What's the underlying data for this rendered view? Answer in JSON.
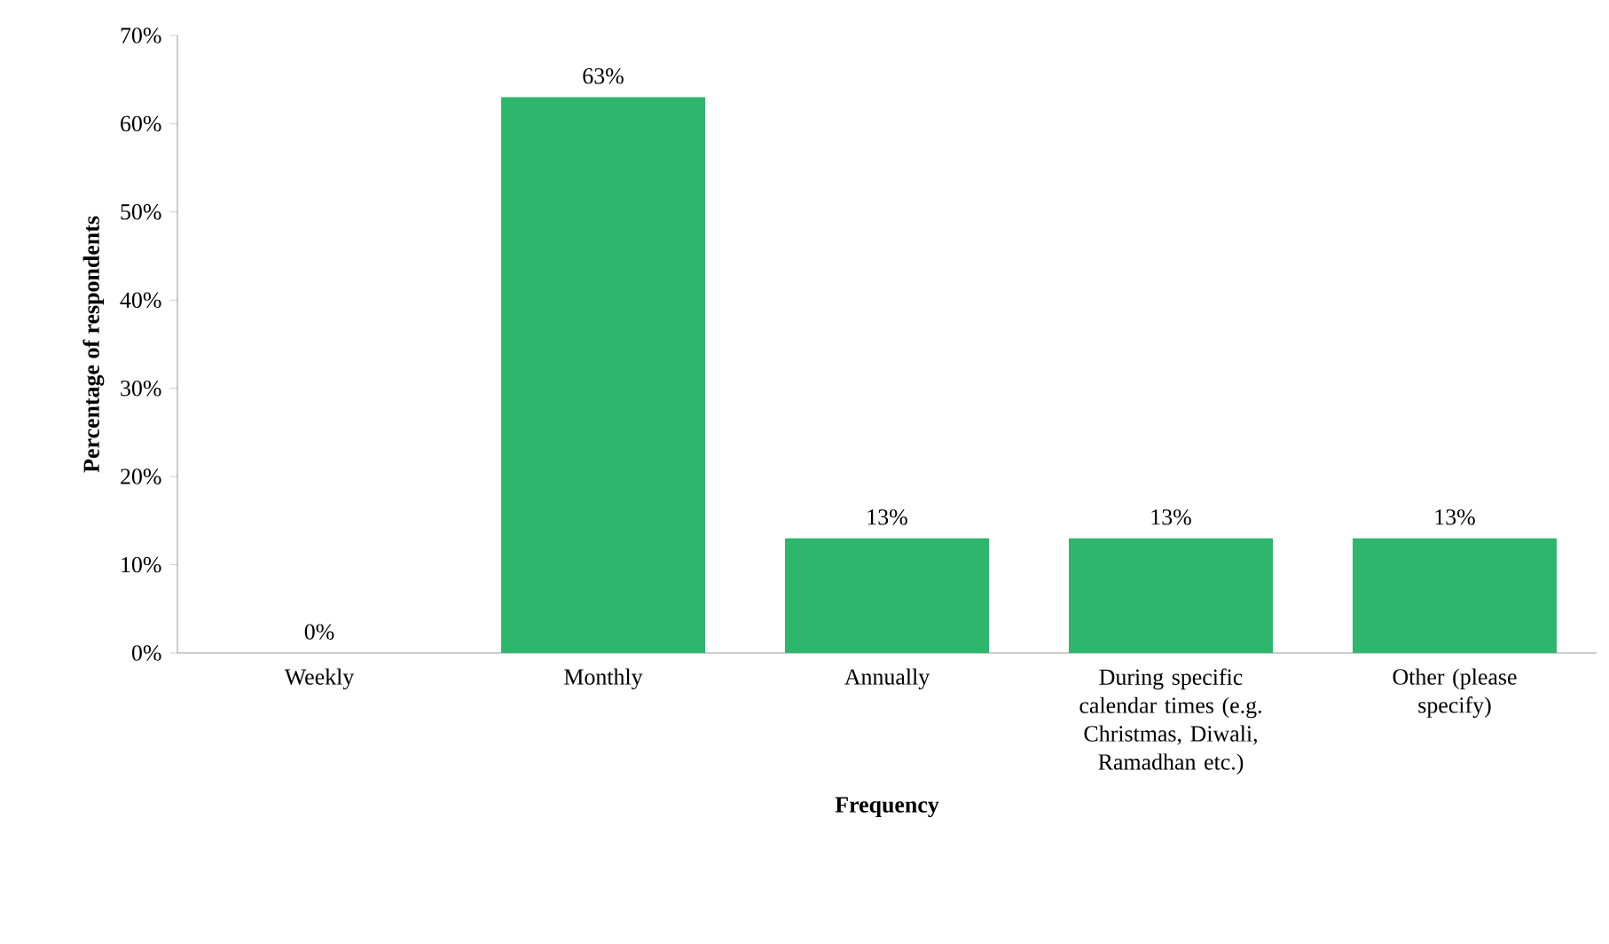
{
  "chart_data": {
    "type": "bar",
    "xlabel": "Frequency",
    "ylabel": "Percentage of respondents",
    "categories": [
      "Weekly",
      "Monthly",
      "Annually",
      "During specific calendar times (e.g. Christmas, Diwali, Ramadhan etc.)",
      "Other (please specify)"
    ],
    "values": [
      0,
      63,
      13,
      13,
      13
    ],
    "color": "#2eb66c",
    "value_labels": [
      "0%",
      "63%",
      "13%",
      "13%",
      "13%"
    ],
    "ylim": [
      0,
      70
    ],
    "yticks": [
      {
        "value": 0,
        "label": "0%"
      },
      {
        "value": 10,
        "label": "10%"
      },
      {
        "value": 20,
        "label": "20%"
      },
      {
        "value": 30,
        "label": "30%"
      },
      {
        "value": 40,
        "label": "40%"
      },
      {
        "value": 50,
        "label": "50%"
      },
      {
        "value": 60,
        "label": "60%"
      },
      {
        "value": 70,
        "label": "70%"
      }
    ],
    "grid": false
  }
}
